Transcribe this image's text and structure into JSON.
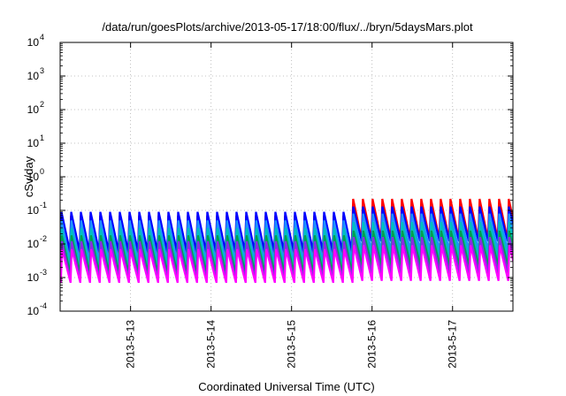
{
  "chart_data": {
    "type": "line",
    "title": "/data/run/goesPlots/archive/2013-05-17/18:00/flux/../bryn/5daysMars.plot",
    "xlabel": "Coordinated Universal Time (UTC)",
    "ylabel": "cSv/day",
    "x_scale": "time",
    "y_scale": "log",
    "xlim": [
      "2013-05-12T03:00",
      "2013-05-17T18:00"
    ],
    "ylim": [
      0.0001,
      10000
    ],
    "grid": true,
    "legend": "none",
    "x_ticks": [
      {
        "value": "2013-05-13T00:00",
        "label": "2013-5-13"
      },
      {
        "value": "2013-05-14T00:00",
        "label": "2013-5-14"
      },
      {
        "value": "2013-05-15T00:00",
        "label": "2013-5-15"
      },
      {
        "value": "2013-05-16T00:00",
        "label": "2013-5-16"
      },
      {
        "value": "2013-05-17T00:00",
        "label": "2013-5-17"
      }
    ],
    "y_ticks": [
      {
        "value": 0.0001,
        "base": "10",
        "exp": "-4"
      },
      {
        "value": 0.001,
        "base": "10",
        "exp": "-3"
      },
      {
        "value": 0.01,
        "base": "10",
        "exp": "-2"
      },
      {
        "value": 0.1,
        "base": "10",
        "exp": "-1"
      },
      {
        "value": 1,
        "base": "10",
        "exp": "0"
      },
      {
        "value": 10,
        "base": "10",
        "exp": "1"
      },
      {
        "value": 100,
        "base": "10",
        "exp": "2"
      },
      {
        "value": 1000,
        "base": "10",
        "exp": "3"
      },
      {
        "value": 10000,
        "base": "10",
        "exp": "4"
      }
    ],
    "cycle_hours": 2.9,
    "cycle_start": "2013-05-12T03:00",
    "step_change": "2013-05-15T17:00",
    "series": [
      {
        "color": "#ff0000",
        "peak_before": 0.07,
        "trough_before": 0.004,
        "peak_after": 0.22,
        "trough_after": 0.014
      },
      {
        "color": "#0000ff",
        "peak_before": 0.09,
        "trough_before": 0.006,
        "peak_after": 0.13,
        "trough_after": 0.012
      },
      {
        "color": "#1e90ff",
        "peak_before": 0.05,
        "trough_before": 0.003,
        "peak_after": 0.08,
        "trough_after": 0.006
      },
      {
        "color": "#00bfbf",
        "peak_before": 0.03,
        "trough_before": 0.002,
        "peak_after": 0.045,
        "trough_after": 0.0035
      },
      {
        "color": "#00a050",
        "peak_before": 0.018,
        "trough_before": 0.0013,
        "peak_after": 0.025,
        "trough_after": 0.0022
      },
      {
        "color": "#8a2be2",
        "peak_before": 0.012,
        "trough_before": 0.0009,
        "peak_after": 0.016,
        "trough_after": 0.0013
      },
      {
        "color": "#ff00ff",
        "peak_before": 0.007,
        "trough_before": 0.0007,
        "peak_after": 0.009,
        "trough_after": 0.0008
      }
    ]
  }
}
